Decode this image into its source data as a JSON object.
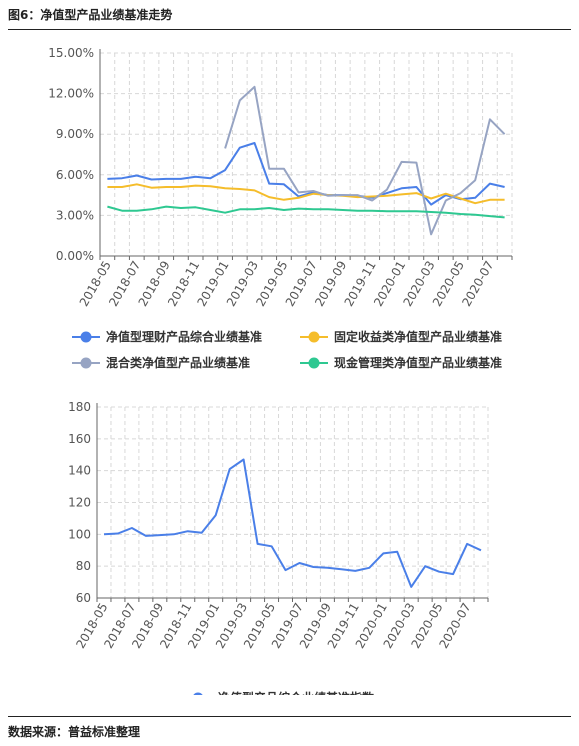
{
  "figure_title": "图6：净值型产品业绩基准走势",
  "source": "数据来源：普益标准整理",
  "colors": {
    "blue": "#4a7fe8",
    "yellow": "#f5bd2b",
    "gray": "#97a4c3",
    "green": "#2ec891",
    "grid": "#d8d8d8",
    "axis": "#666666"
  },
  "chart_data": [
    {
      "type": "line",
      "title": "",
      "y_unit": "percent",
      "ylim": [
        0,
        15
      ],
      "y_ticks": [
        "0.00%",
        "3.00%",
        "6.00%",
        "9.00%",
        "12.00%",
        "15.00%"
      ],
      "y_tick_values": [
        0,
        3,
        6,
        9,
        12,
        15
      ],
      "grid": true,
      "legend_position": "bottom",
      "x_tick_labels": [
        "2018-05",
        "2018-07",
        "2018-09",
        "2018-11",
        "2019-01",
        "2019-03",
        "2019-05",
        "2019-07",
        "2019-09",
        "2019-11",
        "2020-01",
        "2020-03",
        "2020-05",
        "2020-07"
      ],
      "x": [
        "2018-05",
        "2018-06",
        "2018-07",
        "2018-08",
        "2018-09",
        "2018-10",
        "2018-11",
        "2018-12",
        "2019-01",
        "2019-02",
        "2019-03",
        "2019-04",
        "2019-05",
        "2019-06",
        "2019-07",
        "2019-08",
        "2019-09",
        "2019-10",
        "2019-11",
        "2019-12",
        "2020-01",
        "2020-02",
        "2020-03",
        "2020-04",
        "2020-05",
        "2020-06",
        "2020-07",
        "2020-08"
      ],
      "series": [
        {
          "name": "净值型理财产品综合业绩基准",
          "color_key": "blue",
          "values": [
            5.7,
            5.75,
            5.95,
            5.65,
            5.7,
            5.7,
            5.85,
            5.75,
            6.35,
            8.0,
            8.35,
            5.35,
            5.3,
            4.4,
            4.7,
            4.5,
            4.5,
            4.45,
            4.3,
            4.65,
            5.0,
            5.1,
            3.8,
            4.5,
            4.2,
            4.3,
            5.35,
            5.1
          ]
        },
        {
          "name": "固定收益类净值型产品业绩基准",
          "color_key": "yellow",
          "values": [
            5.1,
            5.1,
            5.3,
            5.05,
            5.1,
            5.1,
            5.2,
            5.15,
            5.0,
            4.95,
            4.85,
            4.35,
            4.15,
            4.3,
            4.6,
            4.5,
            4.45,
            4.35,
            4.4,
            4.45,
            4.55,
            4.65,
            4.25,
            4.6,
            4.25,
            3.9,
            4.15,
            4.15
          ]
        },
        {
          "name": "混合类净值型产品业绩基准",
          "color_key": "gray",
          "values": [
            null,
            null,
            null,
            null,
            null,
            null,
            null,
            null,
            7.95,
            11.5,
            12.5,
            6.45,
            6.45,
            4.7,
            4.8,
            4.45,
            4.5,
            4.5,
            4.1,
            4.9,
            6.95,
            6.9,
            1.6,
            4.1,
            4.65,
            5.6,
            10.1,
            9.0
          ]
        },
        {
          "name": "现金管理类净值型产品业绩基准",
          "color_key": "green",
          "values": [
            3.65,
            3.35,
            3.35,
            3.45,
            3.65,
            3.55,
            3.6,
            3.4,
            3.2,
            3.45,
            3.45,
            3.55,
            3.4,
            3.5,
            3.45,
            3.45,
            3.4,
            3.35,
            3.35,
            3.3,
            3.3,
            3.3,
            3.25,
            3.2,
            3.1,
            3.05,
            2.95,
            2.85
          ]
        }
      ]
    },
    {
      "type": "line",
      "title": "",
      "ylim": [
        60,
        180
      ],
      "y_ticks": [
        "60",
        "80",
        "100",
        "120",
        "140",
        "160",
        "180"
      ],
      "y_tick_values": [
        60,
        80,
        100,
        120,
        140,
        160,
        180
      ],
      "grid": true,
      "legend_position": "bottom",
      "x_tick_labels": [
        "2018-05",
        "2018-07",
        "2018-09",
        "2018-11",
        "2019-01",
        "2019-03",
        "2019-05",
        "2019-07",
        "2019-09",
        "2019-11",
        "2020-01",
        "2020-03",
        "2020-05",
        "2020-07"
      ],
      "x": [
        "2018-05",
        "2018-06",
        "2018-07",
        "2018-08",
        "2018-09",
        "2018-10",
        "2018-11",
        "2018-12",
        "2019-01",
        "2019-02",
        "2019-03",
        "2019-04",
        "2019-05",
        "2019-06",
        "2019-07",
        "2019-08",
        "2019-09",
        "2019-10",
        "2019-11",
        "2019-12",
        "2020-01",
        "2020-02",
        "2020-03",
        "2020-04",
        "2020-05",
        "2020-06",
        "2020-07",
        "2020-08"
      ],
      "series": [
        {
          "name": "净值型产品综合业绩基准指数",
          "color_key": "blue",
          "values": [
            100,
            100.5,
            104,
            99,
            99.5,
            100,
            102,
            101,
            112,
            141,
            147,
            94,
            92.5,
            77.5,
            82,
            79.5,
            79,
            78,
            77,
            79,
            88,
            89,
            67,
            80,
            76.5,
            75,
            94,
            90
          ]
        }
      ]
    }
  ]
}
